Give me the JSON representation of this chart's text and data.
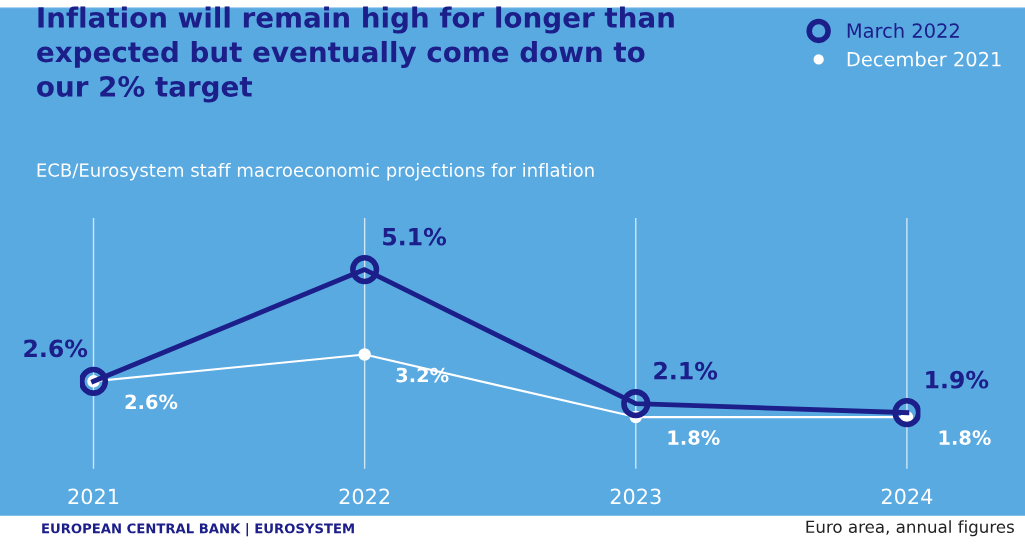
{
  "chart_data": {
    "type": "line",
    "title": "Inflation will remain high for longer than\nexpected but eventually come down to\nour 2% target",
    "subtitle": "ECB/Eurosystem staff macroeconomic projections for inflation",
    "categories": [
      "2021",
      "2022",
      "2023",
      "2024"
    ],
    "series": [
      {
        "name": "March 2022",
        "color": "#1c1f8a",
        "values": [
          2.6,
          5.1,
          2.1,
          1.9
        ],
        "value_labels": [
          "2.6%",
          "5.1%",
          "2.1%",
          "1.9%"
        ]
      },
      {
        "name": "December 2021",
        "color": "#ffffff",
        "values": [
          2.6,
          3.2,
          1.8,
          1.8
        ],
        "value_labels": [
          "2.6%",
          "3.2%",
          "1.8%",
          "1.8%"
        ]
      }
    ],
    "marker": "circle",
    "grid": "x",
    "legend": "top right",
    "annotations": [
      "EUROPEAN CENTRAL BANK | EUROSYSTEM",
      "Euro area, annual figures"
    ]
  }
}
